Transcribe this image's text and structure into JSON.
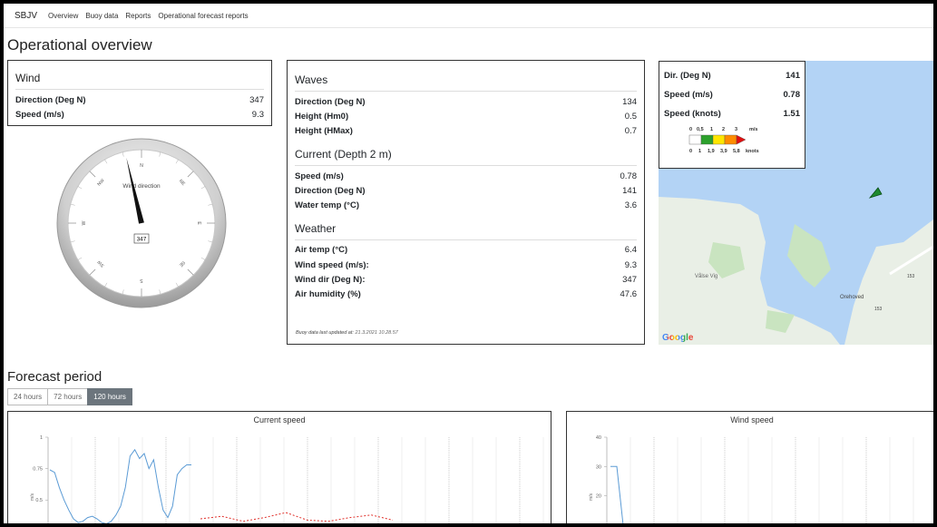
{
  "navbar": {
    "brand": "SBJV",
    "links": [
      "Overview",
      "Buoy data",
      "Reports",
      "Operational forecast reports"
    ]
  },
  "page_title": "Operational overview",
  "wind": {
    "title": "Wind",
    "rows": [
      {
        "label": "Direction (Deg N)",
        "value": "347"
      },
      {
        "label": "Speed (m/s)",
        "value": "9.3"
      }
    ],
    "compass": {
      "label": "Wind direction",
      "value": "347",
      "heading_deg": 347,
      "cardinals": [
        "N",
        "NE",
        "E",
        "SE",
        "S",
        "SW",
        "W",
        "NW"
      ]
    }
  },
  "waves_panel": {
    "sections": [
      {
        "title": "Waves",
        "rows": [
          {
            "label": "Direction (Deg N)",
            "value": "134"
          },
          {
            "label": "Height (Hm0)",
            "value": "0.5"
          },
          {
            "label": "Height (HMax)",
            "value": "0.7"
          }
        ]
      },
      {
        "title": "Current (Depth 2 m)",
        "rows": [
          {
            "label": "Speed (m/s)",
            "value": "0.78"
          },
          {
            "label": "Direction (Deg N)",
            "value": "141"
          },
          {
            "label": "Water temp (°C)",
            "value": "3.6"
          }
        ]
      },
      {
        "title": "Weather",
        "rows": [
          {
            "label": "Air temp (°C)",
            "value": "6.4"
          },
          {
            "label": "Wind speed (m/s):",
            "value": "9.3"
          },
          {
            "label": "Wind dir (Deg N):",
            "value": "347"
          },
          {
            "label": "Air humidity (%)",
            "value": "47.6"
          }
        ]
      }
    ],
    "updated_label": "Buoy data last updated at:",
    "updated_value": "21.3.2021 10.28.57"
  },
  "map": {
    "info_rows": [
      {
        "label": "Dir. (Deg N)",
        "value": "141"
      },
      {
        "label": "Speed (m/s)",
        "value": "0.78"
      },
      {
        "label": "Speed (knots)",
        "value": "1.51"
      }
    ],
    "scale_ms": [
      "0",
      "0,5",
      "1",
      "2",
      "3",
      "m/s"
    ],
    "scale_knots": [
      "0",
      "1",
      "1,9",
      "3,9",
      "5,8",
      "knots"
    ],
    "scale_colors": [
      "#ffffff",
      "#2ca02c",
      "#ffe600",
      "#ff8c00",
      "#e01010"
    ],
    "place_labels": [
      "Vålse Vig",
      "Orehoved",
      "153",
      "153"
    ],
    "google": "Google",
    "water_color": "#b3d3f5",
    "land_color": "#e9efe6"
  },
  "forecast": {
    "title": "Forecast period",
    "buttons": [
      "24 hours",
      "72 hours",
      "120 hours"
    ],
    "active_button": "120 hours"
  },
  "chart_data": [
    {
      "type": "line",
      "title": "Current speed",
      "ylabel": "m/s",
      "y_ticks": [
        "1",
        "0.75",
        "0.5"
      ],
      "ylim": [
        0.3,
        1
      ],
      "series": [
        {
          "values": [
            0.74,
            0.72,
            0.6,
            0.5,
            0.42,
            0.35,
            0.32,
            0.33,
            0.36,
            0.37,
            0.35,
            0.32,
            0.31,
            0.33,
            0.38,
            0.45,
            0.6,
            0.85,
            0.9,
            0.83,
            0.87,
            0.75,
            0.82,
            0.6,
            0.42,
            0.36,
            0.45,
            0.7,
            0.75,
            0.78,
            0.78
          ],
          "color": "#5b9bd5"
        },
        {
          "values": [
            0.35,
            0.37,
            0.33,
            0.36,
            0.4,
            0.34,
            0.33,
            0.36,
            0.38,
            0.34
          ],
          "color": "#e0302a"
        }
      ]
    },
    {
      "type": "line",
      "title": "Wind speed",
      "ylabel": "m/s",
      "y_ticks": [
        "40",
        "30",
        "20"
      ],
      "ylim": [
        10,
        40
      ],
      "series": [
        {
          "values": [
            30,
            30,
            10
          ],
          "color": "#5b9bd5"
        }
      ]
    }
  ]
}
